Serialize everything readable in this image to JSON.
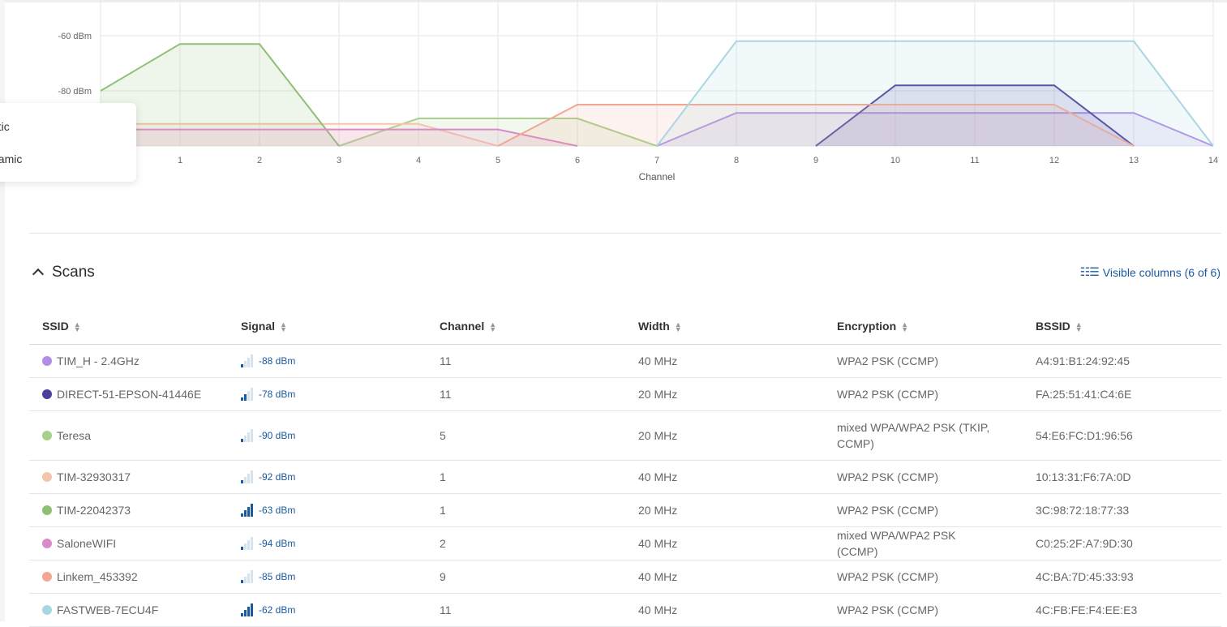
{
  "chart": {
    "y_ticks": [
      "-60 dBm",
      "-80 dBm"
    ],
    "x_ticks": [
      "1",
      "2",
      "3",
      "4",
      "5",
      "6",
      "7",
      "8",
      "9",
      "10",
      "11",
      "12",
      "13",
      "14"
    ],
    "xlabel": "Channel"
  },
  "chart_data": {
    "type": "area",
    "xlabel": "Channel",
    "ylabel": "",
    "xlim": [
      0,
      14
    ],
    "ylim": [
      -100,
      -60
    ],
    "series": [
      {
        "name": "TIM_H - 2.4GHz",
        "color": "#b18ee6",
        "points": [
          [
            7,
            -100
          ],
          [
            8,
            -88
          ],
          [
            13,
            -88
          ],
          [
            14,
            -100
          ]
        ]
      },
      {
        "name": "DIRECT-51-EPSON-41446E",
        "color": "#4a3f9a",
        "points": [
          [
            9,
            -100
          ],
          [
            10,
            -78
          ],
          [
            12,
            -78
          ],
          [
            13,
            -100
          ]
        ]
      },
      {
        "name": "Teresa",
        "color": "#a8d08d",
        "points": [
          [
            3,
            -100
          ],
          [
            4,
            -90
          ],
          [
            6,
            -90
          ],
          [
            7,
            -100
          ]
        ]
      },
      {
        "name": "TIM-32930317",
        "color": "#f5c4ad",
        "points": [
          [
            0,
            -92
          ],
          [
            1,
            -92
          ],
          [
            4,
            -92
          ],
          [
            5,
            -100
          ]
        ]
      },
      {
        "name": "TIM-22042373",
        "color": "#8fbf74",
        "points": [
          [
            0,
            -80
          ],
          [
            1,
            -63
          ],
          [
            2,
            -63
          ],
          [
            3,
            -100
          ]
        ]
      },
      {
        "name": "SaloneWIFI",
        "color": "#d98ac7",
        "points": [
          [
            0,
            -94
          ],
          [
            1,
            -94
          ],
          [
            5,
            -94
          ],
          [
            6,
            -100
          ]
        ]
      },
      {
        "name": "Linkem_453392",
        "color": "#f2a792",
        "points": [
          [
            5,
            -100
          ],
          [
            6,
            -85
          ],
          [
            12,
            -85
          ],
          [
            13,
            -100
          ]
        ]
      },
      {
        "name": "FASTWEB-7ECU4F",
        "color": "#a9d6e2",
        "points": [
          [
            7,
            -100
          ],
          [
            8,
            -62
          ],
          [
            13,
            -62
          ],
          [
            14,
            -100
          ]
        ]
      }
    ]
  },
  "legend_popup": {
    "items": [
      "atic",
      "namic"
    ]
  },
  "section": {
    "title": "Scans",
    "visible_columns": "Visible columns (6 of 6)"
  },
  "table": {
    "headers": [
      "SSID",
      "Signal",
      "Channel",
      "Width",
      "Encryption",
      "BSSID"
    ],
    "rows": [
      {
        "ssid": "TIM_H - 2.4GHz",
        "color": "#b18ee6",
        "signal": "-88 dBm",
        "bars": 1,
        "channel": "11",
        "width": "40 MHz",
        "encryption": "WPA2 PSK (CCMP)",
        "bssid": "A4:91:B1:24:92:45"
      },
      {
        "ssid": "DIRECT-51-EPSON-41446E",
        "color": "#4a3f9a",
        "signal": "-78 dBm",
        "bars": 2,
        "channel": "11",
        "width": "20 MHz",
        "encryption": "WPA2 PSK (CCMP)",
        "bssid": "FA:25:51:41:C4:6E"
      },
      {
        "ssid": "Teresa",
        "color": "#a8d08d",
        "signal": "-90 dBm",
        "bars": 1,
        "channel": "5",
        "width": "20 MHz",
        "encryption": "mixed WPA/WPA2 PSK (TKIP, CCMP)",
        "bssid": "54:E6:FC:D1:96:56"
      },
      {
        "ssid": "TIM-32930317",
        "color": "#f5c4ad",
        "signal": "-92 dBm",
        "bars": 1,
        "channel": "1",
        "width": "40 MHz",
        "encryption": "WPA2 PSK (CCMP)",
        "bssid": "10:13:31:F6:7A:0D"
      },
      {
        "ssid": "TIM-22042373",
        "color": "#8fbf74",
        "signal": "-63 dBm",
        "bars": 4,
        "channel": "1",
        "width": "20 MHz",
        "encryption": "WPA2 PSK (CCMP)",
        "bssid": "3C:98:72:18:77:33"
      },
      {
        "ssid": "SaloneWIFI",
        "color": "#d98ac7",
        "signal": "-94 dBm",
        "bars": 1,
        "channel": "2",
        "width": "40 MHz",
        "encryption": "mixed WPA/WPA2 PSK (CCMP)",
        "bssid": "C0:25:2F:A7:9D:30"
      },
      {
        "ssid": "Linkem_453392",
        "color": "#f2a792",
        "signal": "-85 dBm",
        "bars": 1,
        "channel": "9",
        "width": "40 MHz",
        "encryption": "WPA2 PSK (CCMP)",
        "bssid": "4C:BA:7D:45:33:93"
      },
      {
        "ssid": "FASTWEB-7ECU4F",
        "color": "#a9d6e2",
        "signal": "-62 dBm",
        "bars": 4,
        "channel": "11",
        "width": "40 MHz",
        "encryption": "WPA2 PSK (CCMP)",
        "bssid": "4C:FB:FE:F4:EE:E3"
      }
    ]
  }
}
